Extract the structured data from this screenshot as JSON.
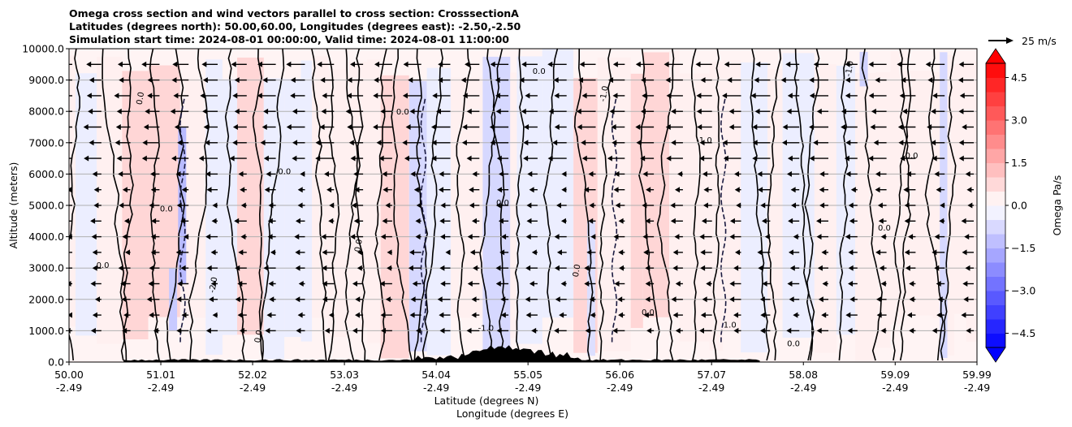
{
  "title_lines": [
    "Omega cross section and wind vectors parallel to cross section: CrosssectionA",
    "Latitudes (degrees north): 50.00,60.00, Longitudes (degrees east): -2.50,-2.50",
    "Simulation start time: 2024-08-01 00:00:00, Valid time: 2024-08-01 11:00:00"
  ],
  "chart_data": {
    "type": "contour",
    "title": "Omega cross section and wind vectors parallel to cross section: CrosssectionA",
    "ylabel": "Altitude (meters)",
    "xlabel_lines": [
      "Latitude (degrees N)",
      "Longitude (degrees E)"
    ],
    "ylim": [
      0,
      10000
    ],
    "xlim": [
      50.0,
      59.99
    ],
    "y_ticks": [
      0,
      1000,
      2000,
      3000,
      4000,
      5000,
      6000,
      7000,
      8000,
      9000,
      10000
    ],
    "y_tick_labels": [
      "0.0",
      "1000.0",
      "2000.0",
      "3000.0",
      "4000.0",
      "5000.0",
      "6000.0",
      "7000.0",
      "8000.0",
      "9000.0",
      "10000.0"
    ],
    "x_ticks": [
      50.0,
      51.01,
      52.02,
      53.03,
      54.04,
      55.05,
      56.06,
      57.07,
      58.08,
      59.09,
      59.99
    ],
    "x_tick_lat_labels": [
      "50.00",
      "51.01",
      "52.02",
      "53.03",
      "54.04",
      "55.05",
      "56.06",
      "57.07",
      "58.08",
      "59.09",
      "59.99"
    ],
    "x_tick_lon_labels": [
      "-2.49",
      "-2.49",
      "-2.49",
      "-2.49",
      "-2.49",
      "-2.49",
      "-2.49",
      "-2.49",
      "-2.49",
      "-2.49",
      "-2.49"
    ],
    "grid": "horizontal",
    "colorbar": {
      "label": "Omega Pa/s",
      "ticks": [
        4.5,
        3.0,
        1.5,
        0.0,
        -1.5,
        -3.0,
        -4.5
      ],
      "tick_labels": [
        "4.5",
        "3.0",
        "1.5",
        "0.0",
        "−1.5",
        "−3.0",
        "−4.5"
      ],
      "range": [
        -5.0,
        5.0
      ],
      "positive_color": "#ff0000",
      "negative_color": "#0000ff",
      "extend": "both"
    },
    "quiver_key": {
      "label": "25 m/s",
      "speed": 25
    },
    "vector_rows_m": [
      1000,
      1500,
      2000,
      2500,
      3000,
      3500,
      4000,
      4500,
      5000,
      5500,
      6000,
      6500,
      7000,
      7500,
      8000,
      8500,
      9000,
      9500
    ],
    "wind_direction": "westward (negative along-section)",
    "contour_labels": [
      "0.0",
      "-1.0",
      "1.0",
      "-2.0"
    ],
    "terrain": "black filled orography along bottom between 50.6 and 57.6 N",
    "colors": {
      "contour_line": "#000000",
      "terrain": "#000000"
    }
  }
}
